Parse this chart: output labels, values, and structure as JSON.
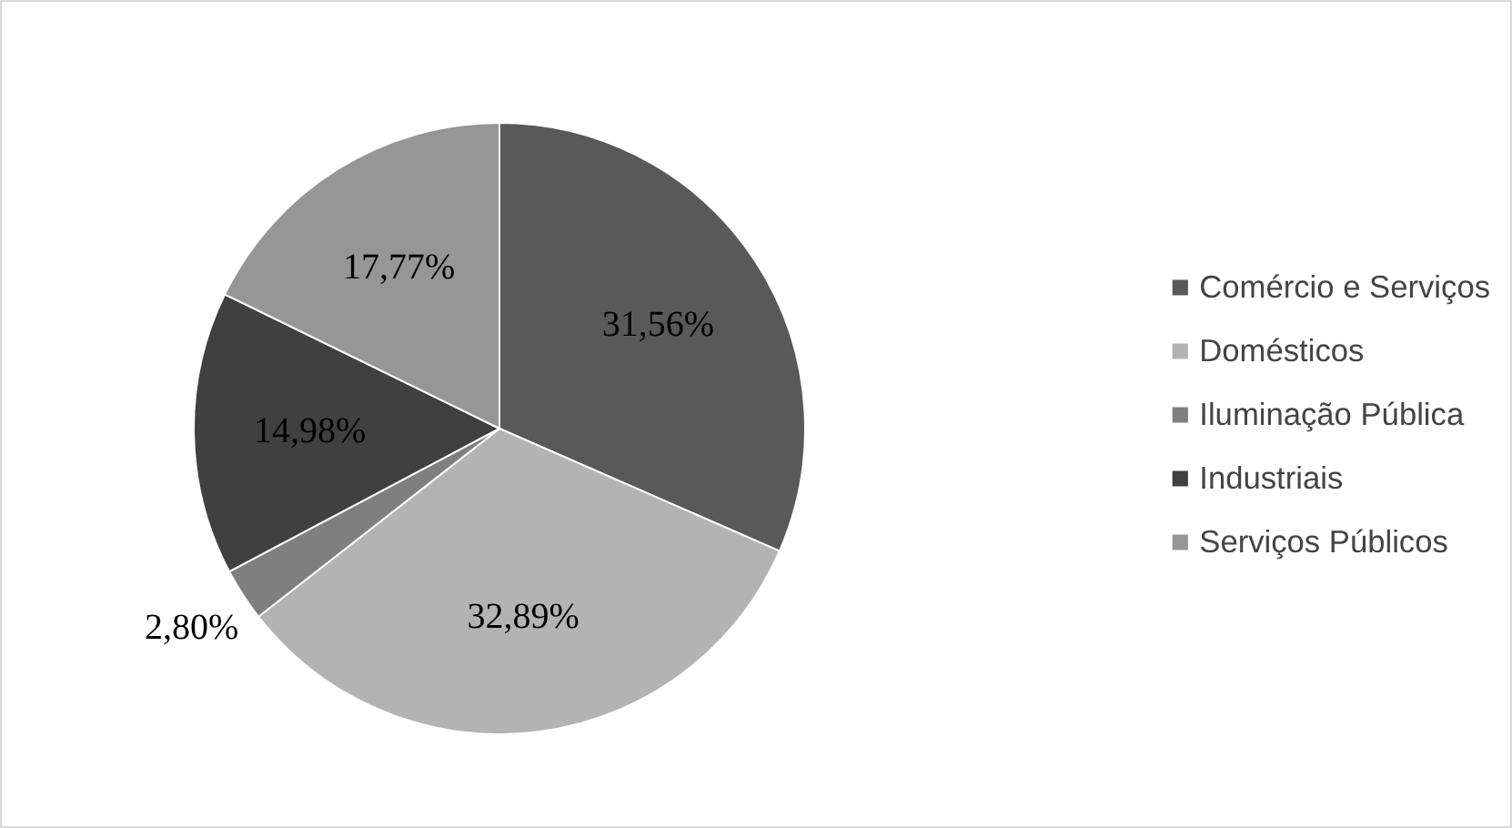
{
  "chart_data": {
    "type": "pie",
    "categories": [
      "Comércio e Serviços",
      "Domésticos",
      "Iluminação Pública",
      "Industriais",
      "Serviços Públicos"
    ],
    "values": [
      31.56,
      32.89,
      2.8,
      14.98,
      17.77
    ],
    "colors": [
      "#595959",
      "#b3b3b3",
      "#7f7f7f",
      "#404040",
      "#969696"
    ],
    "value_labels": [
      "31,56%",
      "32,89%",
      "2,80%",
      "14,98%",
      "17,77%"
    ],
    "legend": "right"
  }
}
